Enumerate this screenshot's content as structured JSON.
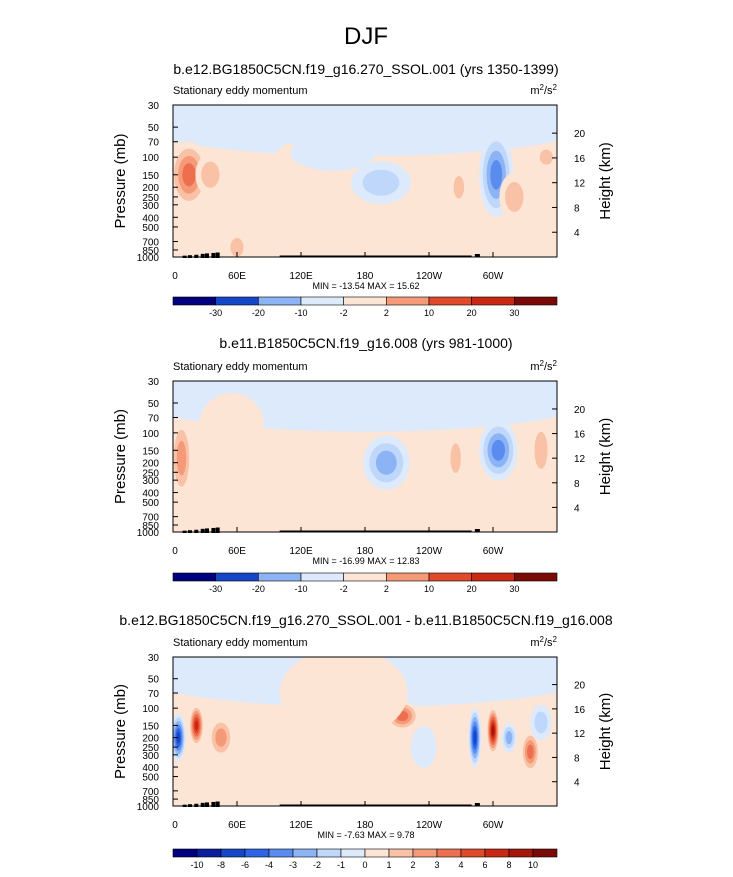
{
  "page_title": "DJF",
  "colors": {
    "neg": [
      "#00007f",
      "#0a1ea0",
      "#1446c8",
      "#2d64e6",
      "#5a8cf0",
      "#8cb4f5",
      "#bed7fa",
      "#dceafc"
    ],
    "pos": [
      "#fde5d6",
      "#f9c2a6",
      "#f49a78",
      "#ee6f4f",
      "#e04a2a",
      "#c82814",
      "#a6170b",
      "#7a0a08"
    ]
  },
  "chart_data": [
    {
      "type": "heatmap",
      "plot_type": "latitude-height contour (filled)",
      "title": "b.e12.BG1850C5CN.f19_g16.270_SSOL.001 (yrs 1350-1399)",
      "subtitle": "Stationary eddy momentum",
      "units_base": "m",
      "units_sup1": "2",
      "units_mid": "/s",
      "units_sup2": "2",
      "ylabel": "Pressure (mb)",
      "ylabel_right": "Height (km)",
      "xlabel": "",
      "yticks": [
        "30",
        "50",
        "70",
        "100",
        "150",
        "200",
        "250",
        "300",
        "400",
        "500",
        "700",
        "850",
        "1000"
      ],
      "height_ticks": [
        "20",
        "16",
        "12",
        "8",
        "4"
      ],
      "xticks": [
        "0",
        "60E",
        "120E",
        "180",
        "120W",
        "60W"
      ],
      "stats": "MIN = -13.54  MAX =  15.62",
      "colorbar_labels": [
        "-30",
        "-20",
        "-10",
        "-2",
        "2",
        "10",
        "20",
        "30"
      ],
      "blobs": [
        {
          "lon": 15,
          "lev": 150,
          "level": 4,
          "wx": 18,
          "wy": 0.22
        },
        {
          "lon": 35,
          "lev": 150,
          "level": 2,
          "wx": 14,
          "wy": 0.14
        },
        {
          "lon": 60,
          "lev": 800,
          "level": 2,
          "wx": 10,
          "wy": 0.1
        },
        {
          "lon": 110,
          "lev": 120,
          "level": 1,
          "wx": 16,
          "wy": 0.14
        },
        {
          "lon": 195,
          "lev": 180,
          "level": -2,
          "wx": 28,
          "wy": 0.14
        },
        {
          "lon": 245,
          "lev": 500,
          "level": 1,
          "wx": 20,
          "wy": 0.2
        },
        {
          "lon": 268,
          "lev": 200,
          "level": 2,
          "wx": 8,
          "wy": 0.12
        },
        {
          "lon": 303,
          "lev": 150,
          "level": -4,
          "wx": 16,
          "wy": 0.28
        },
        {
          "lon": 320,
          "lev": 250,
          "level": 2,
          "wx": 14,
          "wy": 0.16
        },
        {
          "lon": 350,
          "lev": 100,
          "level": 2,
          "wx": 10,
          "wy": 0.08
        },
        {
          "lon": 150,
          "lev": 90,
          "level": -1,
          "wx": 40,
          "wy": 0.12
        }
      ]
    },
    {
      "type": "heatmap",
      "plot_type": "latitude-height contour (filled)",
      "title": "b.e11.B1850C5CN.f19_g16.008 (yrs 981-1000)",
      "subtitle": "Stationary eddy momentum",
      "units_base": "m",
      "units_sup1": "2",
      "units_mid": "/s",
      "units_sup2": "2",
      "ylabel": "Pressure (mb)",
      "ylabel_right": "Height (km)",
      "xlabel": "",
      "yticks": [
        "30",
        "50",
        "70",
        "100",
        "150",
        "200",
        "250",
        "300",
        "400",
        "500",
        "700",
        "850",
        "1000"
      ],
      "height_ticks": [
        "20",
        "16",
        "12",
        "8",
        "4"
      ],
      "xticks": [
        "0",
        "60E",
        "120E",
        "180",
        "120W",
        "60W"
      ],
      "stats": "MIN = -16.99  MAX =  12.83",
      "colorbar_labels": [
        "-30",
        "-20",
        "-10",
        "-2",
        "2",
        "10",
        "20",
        "30"
      ],
      "blobs": [
        {
          "lon": 8,
          "lev": 180,
          "level": 3,
          "wx": 10,
          "wy": 0.26
        },
        {
          "lon": 55,
          "lev": 80,
          "level": 1,
          "wx": 30,
          "wy": 0.2
        },
        {
          "lon": 200,
          "lev": 200,
          "level": -3,
          "wx": 22,
          "wy": 0.18
        },
        {
          "lon": 265,
          "lev": 180,
          "level": 2,
          "wx": 8,
          "wy": 0.16
        },
        {
          "lon": 305,
          "lev": 150,
          "level": -4,
          "wx": 18,
          "wy": 0.2
        },
        {
          "lon": 345,
          "lev": 150,
          "level": 2,
          "wx": 10,
          "wy": 0.2
        },
        {
          "lon": 130,
          "lev": 400,
          "level": 1,
          "wx": 25,
          "wy": 0.2
        }
      ]
    },
    {
      "type": "heatmap",
      "plot_type": "latitude-height contour (filled)",
      "title": "b.e12.BG1850C5CN.f19_g16.270_SSOL.001 - b.e11.B1850C5CN.f19_g16.008",
      "subtitle": "Stationary eddy momentum",
      "units_base": "m",
      "units_sup1": "2",
      "units_mid": "/s",
      "units_sup2": "2",
      "ylabel": "Pressure (mb)",
      "ylabel_right": "Height (km)",
      "xlabel": "",
      "yticks": [
        "30",
        "50",
        "70",
        "100",
        "150",
        "200",
        "250",
        "300",
        "400",
        "500",
        "700",
        "850",
        "1000"
      ],
      "height_ticks": [
        "20",
        "16",
        "12",
        "8",
        "4"
      ],
      "xticks": [
        "0",
        "60E",
        "120E",
        "180",
        "120W",
        "60W"
      ],
      "stats": "MIN = -7.63  MAX =  9.78",
      "colorbar_labels": [
        "-10",
        "-8",
        "-6",
        "-4",
        "-3",
        "-2",
        "-1",
        "0",
        "1",
        "2",
        "3",
        "4",
        "6",
        "8",
        "10"
      ],
      "blobs": [
        {
          "lon": 5,
          "lev": 200,
          "level": -6,
          "wx": 7,
          "wy": 0.16
        },
        {
          "lon": 22,
          "lev": 150,
          "level": 6,
          "wx": 7,
          "wy": 0.14
        },
        {
          "lon": 45,
          "lev": 200,
          "level": 3,
          "wx": 12,
          "wy": 0.14
        },
        {
          "lon": 85,
          "lev": 400,
          "level": 1,
          "wx": 30,
          "wy": 0.2
        },
        {
          "lon": 215,
          "lev": 120,
          "level": 4,
          "wx": 16,
          "wy": 0.1
        },
        {
          "lon": 235,
          "lev": 250,
          "level": -1,
          "wx": 12,
          "wy": 0.14
        },
        {
          "lon": 283,
          "lev": 200,
          "level": -6,
          "wx": 6,
          "wy": 0.2
        },
        {
          "lon": 300,
          "lev": 170,
          "level": 7,
          "wx": 6,
          "wy": 0.16
        },
        {
          "lon": 315,
          "lev": 200,
          "level": -3,
          "wx": 7,
          "wy": 0.1
        },
        {
          "lon": 335,
          "lev": 280,
          "level": 4,
          "wx": 9,
          "wy": 0.14
        },
        {
          "lon": 345,
          "lev": 140,
          "level": -2,
          "wx": 10,
          "wy": 0.12
        },
        {
          "lon": 160,
          "lev": 70,
          "level": 1,
          "wx": 60,
          "wy": 0.3
        }
      ]
    }
  ]
}
